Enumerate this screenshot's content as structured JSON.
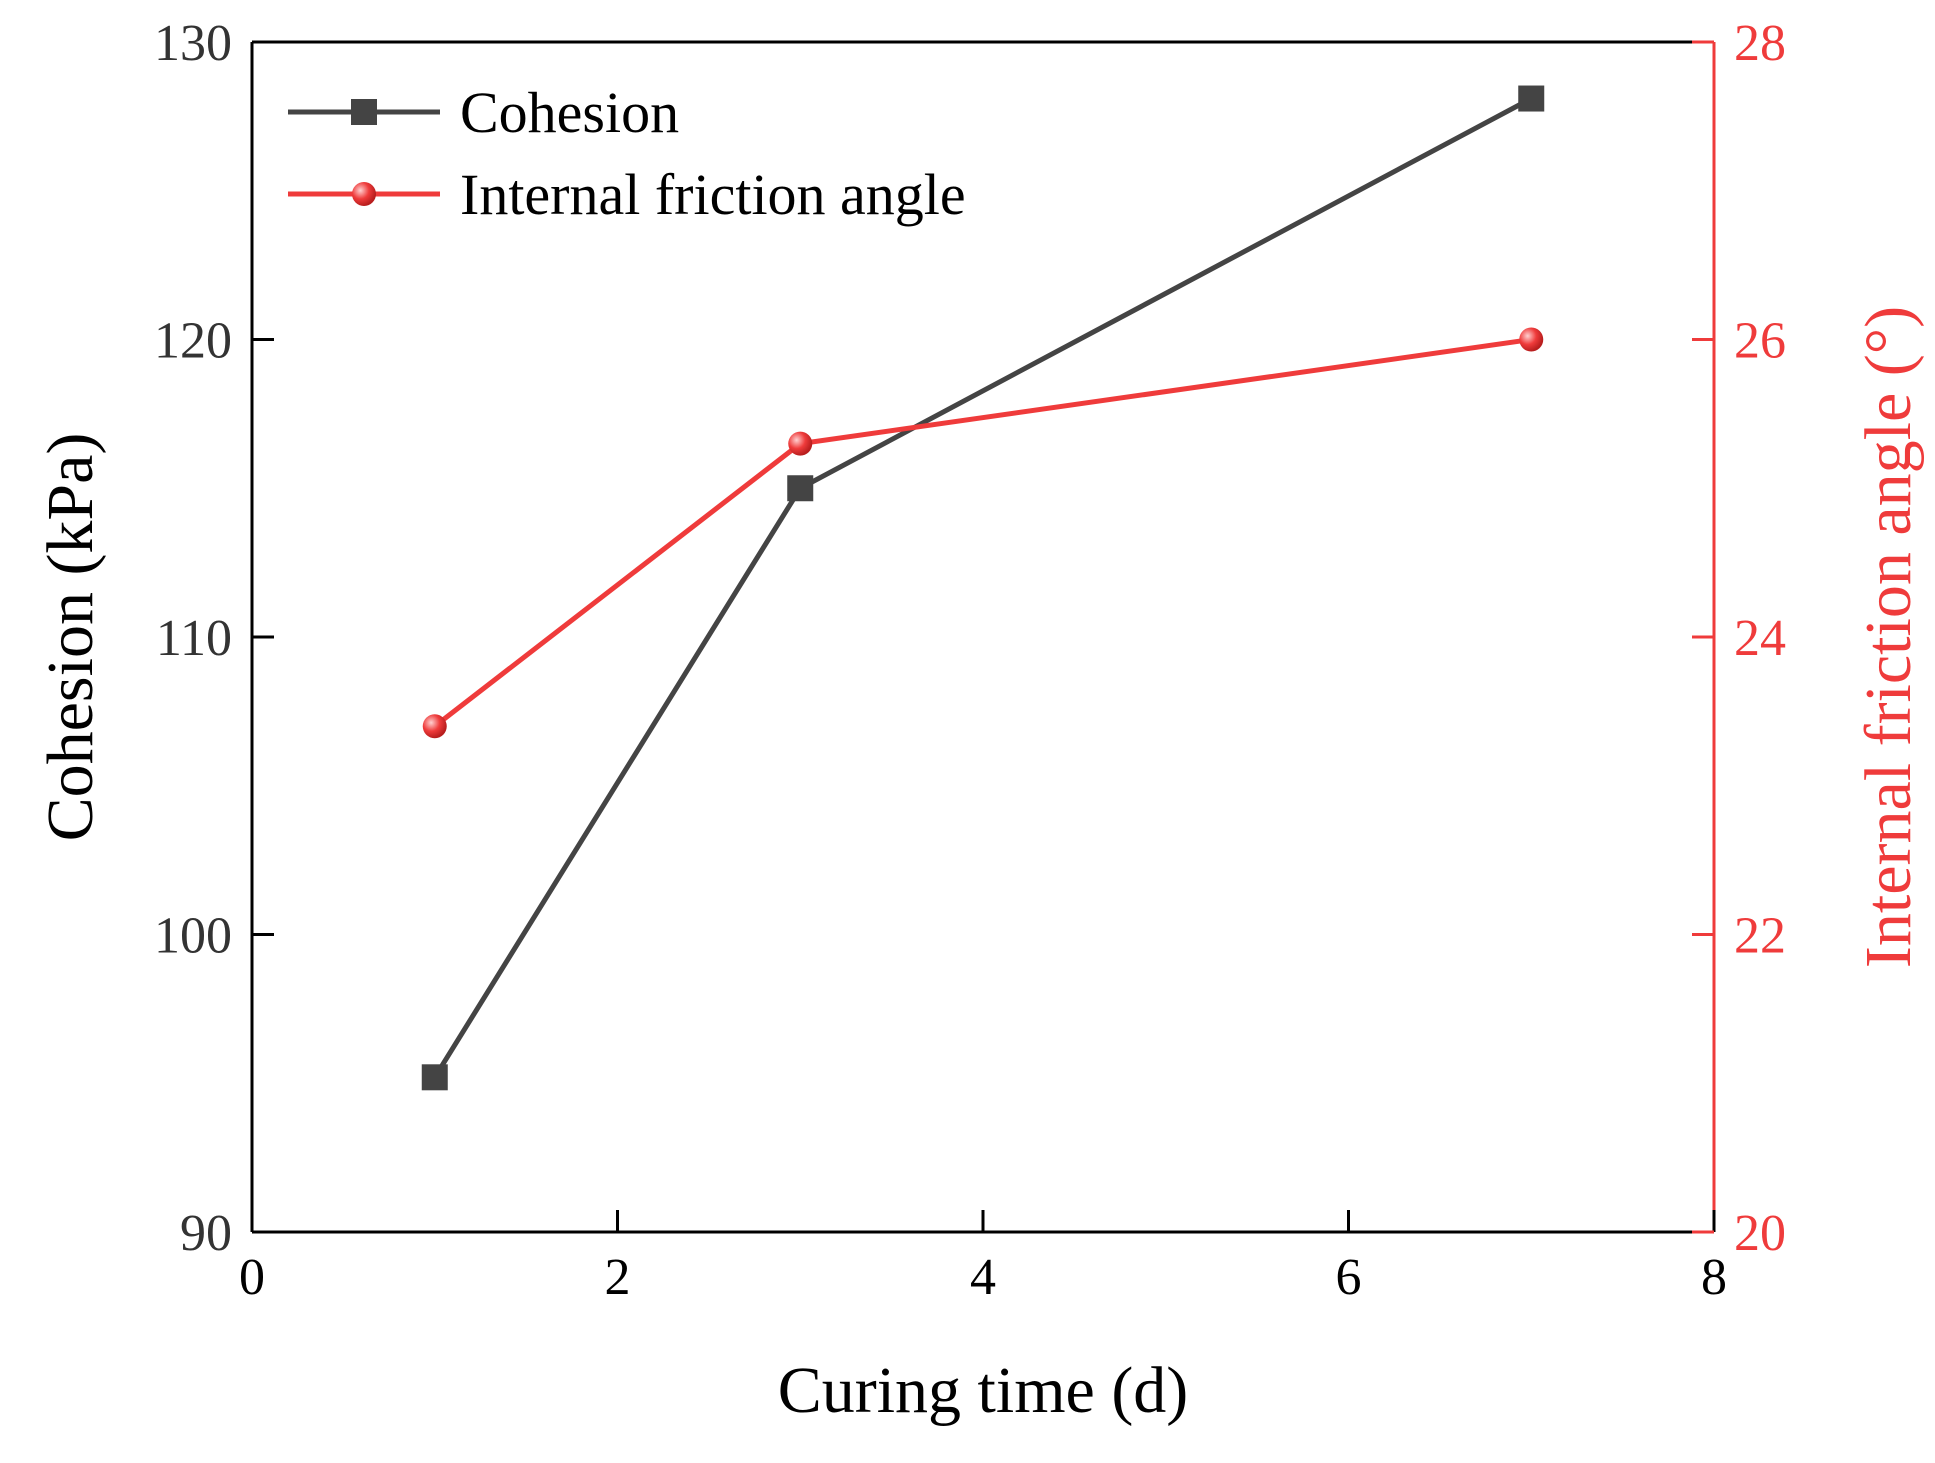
{
  "chart_data": {
    "type": "line",
    "title": "",
    "xlabel": "Curing time (d)",
    "ylabel": "Cohesion (kPa)",
    "y2label": "Internal friction angle (°)",
    "xlim": [
      0,
      8
    ],
    "ylim": [
      90,
      130
    ],
    "y2lim": [
      20,
      28
    ],
    "x_ticks": [
      "0",
      "2",
      "4",
      "6",
      "8"
    ],
    "y_ticks": [
      "90",
      "100",
      "110",
      "120",
      "130"
    ],
    "y2_ticks": [
      "20",
      "22",
      "24",
      "26",
      "28"
    ],
    "grid": false,
    "legend_position": "top-left",
    "colors": {
      "cohesion": "#444444",
      "friction": "#ef3b3b"
    },
    "series": [
      {
        "name": "Cohesion",
        "axis": "left",
        "marker": "square",
        "x": [
          1,
          3,
          7
        ],
        "values": [
          95.2,
          115.0,
          128.1
        ]
      },
      {
        "name": "Internal friction angle",
        "axis": "right",
        "marker": "circle",
        "x": [
          1,
          3,
          7
        ],
        "values": [
          23.4,
          25.3,
          26.0
        ]
      }
    ]
  }
}
